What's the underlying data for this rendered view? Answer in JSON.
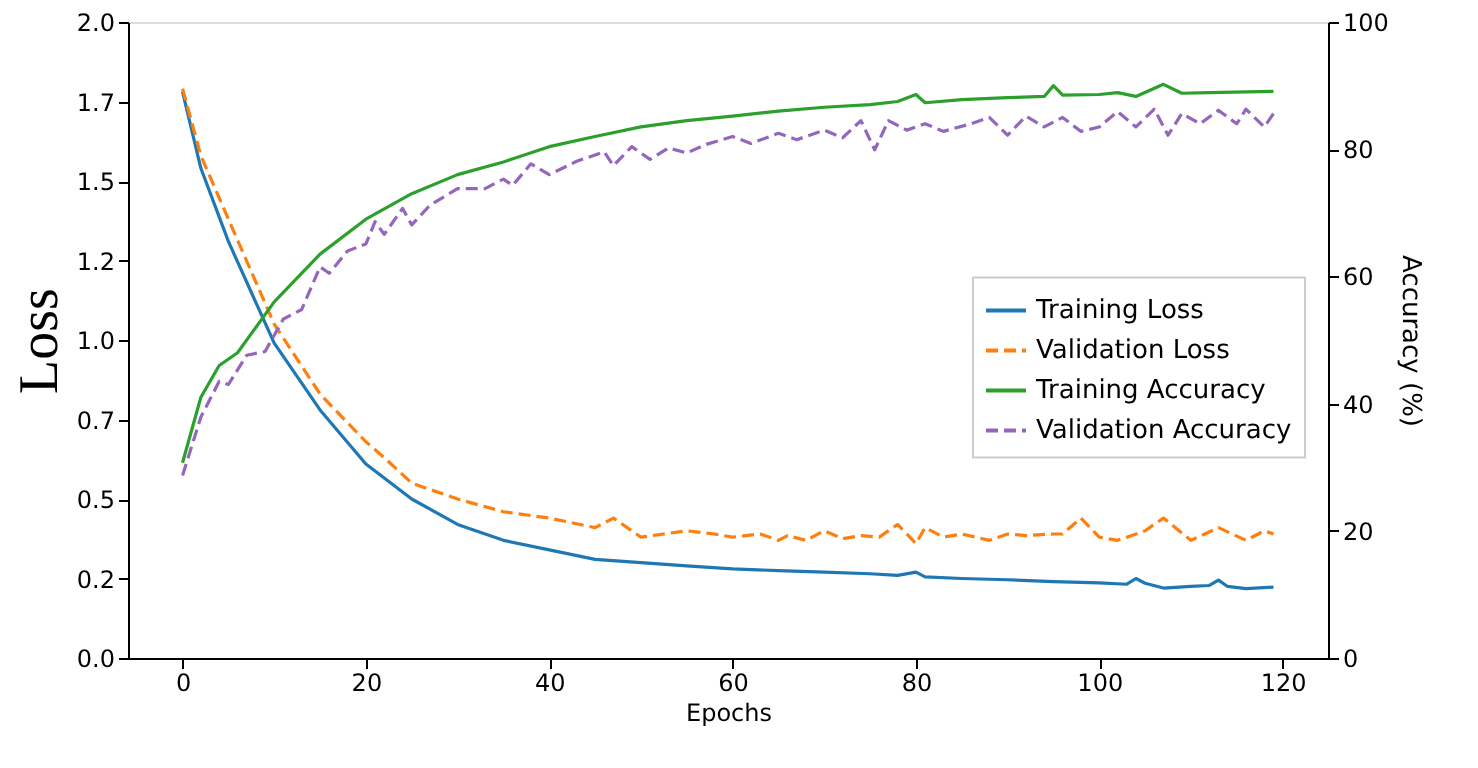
{
  "chart_data": {
    "type": "line",
    "xlabel": "Epochs",
    "ylabel": "Loss",
    "y2label": "Accuracy (%)",
    "xlim": [
      -5.95,
      124.95
    ],
    "xticks": [
      0,
      20,
      40,
      60,
      80,
      100,
      120
    ],
    "ylim": [
      0,
      2
    ],
    "yticks": [
      {
        "value": 0,
        "label": "0.0"
      },
      {
        "value": 0.25,
        "label": "0.2"
      },
      {
        "value": 0.5,
        "label": "0.5"
      },
      {
        "value": 0.75,
        "label": "0.7"
      },
      {
        "value": 1,
        "label": "1.0"
      },
      {
        "value": 1.25,
        "label": "1.2"
      },
      {
        "value": 1.5,
        "label": "1.5"
      },
      {
        "value": 1.75,
        "label": "1.7"
      },
      {
        "value": 2,
        "label": "2.0"
      }
    ],
    "y2lim": [
      0,
      100
    ],
    "y2ticks": [
      0,
      20,
      40,
      60,
      80,
      100
    ],
    "grid": false,
    "legend": "right",
    "marker": "none",
    "series": [
      {
        "name": "Training Loss",
        "color": "#1f77b4",
        "line_style": "solid",
        "x": [
          0,
          2,
          5,
          10,
          15,
          20,
          25,
          30,
          35,
          40,
          45,
          50,
          55,
          60,
          65,
          70,
          75,
          78,
          80,
          81,
          85,
          90,
          95,
          100,
          103,
          104,
          105,
          107,
          110,
          112,
          113,
          114,
          116,
          119
        ],
        "values": [
          1.78,
          1.54,
          1.31,
          0.99,
          0.78,
          0.61,
          0.5,
          0.42,
          0.37,
          0.34,
          0.31,
          0.3,
          0.29,
          0.28,
          0.275,
          0.27,
          0.265,
          0.26,
          0.27,
          0.255,
          0.25,
          0.246,
          0.24,
          0.236,
          0.232,
          0.25,
          0.235,
          0.22,
          0.225,
          0.228,
          0.245,
          0.225,
          0.218,
          0.223
        ]
      },
      {
        "name": "Validation Loss",
        "color": "#ff7f0e",
        "line_style": "dashed",
        "x": [
          0,
          2,
          5,
          10,
          15,
          20,
          22,
          25,
          30,
          35,
          40,
          45,
          47,
          50,
          55,
          58,
          60,
          63,
          65,
          66,
          68,
          70,
          72,
          74,
          76,
          78,
          80,
          81,
          83,
          85,
          88,
          90,
          92,
          95,
          96,
          98,
          100,
          102,
          105,
          107,
          110,
          113,
          116,
          118,
          119
        ],
        "values": [
          1.79,
          1.58,
          1.38,
          1.05,
          0.83,
          0.68,
          0.63,
          0.55,
          0.5,
          0.46,
          0.44,
          0.41,
          0.44,
          0.38,
          0.4,
          0.39,
          0.38,
          0.39,
          0.37,
          0.385,
          0.37,
          0.4,
          0.375,
          0.385,
          0.38,
          0.42,
          0.36,
          0.41,
          0.38,
          0.39,
          0.37,
          0.39,
          0.385,
          0.39,
          0.39,
          0.44,
          0.38,
          0.37,
          0.4,
          0.44,
          0.37,
          0.41,
          0.37,
          0.4,
          0.39
        ]
      },
      {
        "name": "Training Accuracy",
        "color": "#2ca02c",
        "line_style": "solid",
        "axis": "y2",
        "x": [
          0,
          2,
          4,
          6,
          10,
          15,
          20,
          25,
          30,
          35,
          40,
          45,
          50,
          55,
          60,
          65,
          70,
          75,
          78,
          80,
          81,
          85,
          90,
          94,
          95,
          96,
          100,
          102,
          104,
          107,
          109,
          112,
          119
        ],
        "values": [
          30.7,
          41,
          46,
          48,
          56,
          63.5,
          69,
          73,
          76,
          78,
          80.4,
          82,
          83.5,
          84.5,
          85.2,
          86,
          86.6,
          87,
          87.5,
          88.6,
          87.3,
          87.8,
          88.1,
          88.3,
          90,
          88.5,
          88.6,
          88.9,
          88.3,
          90.2,
          88.8,
          88.9,
          89.1
        ]
      },
      {
        "name": "Validation Accuracy",
        "color": "#9467bd",
        "line_style": "dashed",
        "axis": "y2",
        "x": [
          0,
          2,
          4,
          5,
          7,
          9,
          11,
          13,
          15,
          16,
          18,
          20,
          21,
          22,
          24,
          25,
          27,
          30,
          33,
          35,
          36,
          38,
          40,
          43,
          46,
          47,
          49,
          51,
          53,
          55,
          57,
          60,
          62,
          65,
          67,
          70,
          72,
          74,
          75.5,
          77,
          79,
          81,
          83,
          86,
          88,
          90,
          92,
          94,
          96,
          98,
          100,
          102,
          104,
          106,
          107.5,
          109,
          111,
          113,
          115,
          116,
          118,
          119
        ],
        "values": [
          28.7,
          37.9,
          43.5,
          43.0,
          47.6,
          48.2,
          53.3,
          54.8,
          61.5,
          60.5,
          64.0,
          65.1,
          68.6,
          66.6,
          70.7,
          68.1,
          71.2,
          73.8,
          73.8,
          75.3,
          74.3,
          77.7,
          76.0,
          78.1,
          79.6,
          77.4,
          80.4,
          78.4,
          80.2,
          79.4,
          80.7,
          82.0,
          80.9,
          82.5,
          81.5,
          83.0,
          81.8,
          84.5,
          79.9,
          84.5,
          83.0,
          84.0,
          82.8,
          84.0,
          85.0,
          82.2,
          85.2,
          83.5,
          85.0,
          82.8,
          83.5,
          85.9,
          83.5,
          86.3,
          82.2,
          85.6,
          84.0,
          86.1,
          84.0,
          86.3,
          83.5,
          85.6
        ]
      }
    ]
  }
}
